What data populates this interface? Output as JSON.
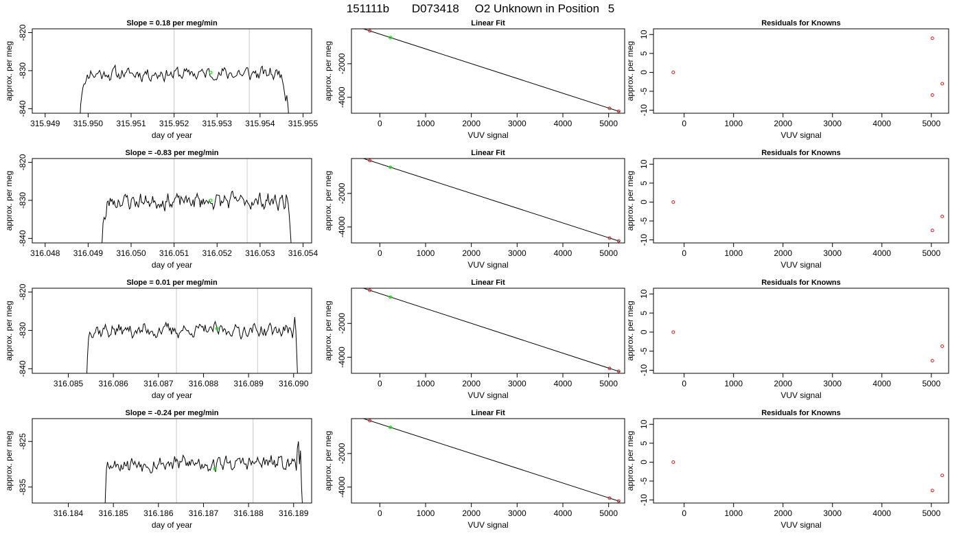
{
  "figure": {
    "run_id": "151111b",
    "sample_id": "D073418",
    "description": "O2 Unknown in Position",
    "position": "5"
  },
  "colors": {
    "trace": "#000000",
    "marker_line": "#c8c8c8",
    "unknown_point": "#22dd22",
    "known_point": "#cc2222",
    "frame": "#000000"
  },
  "chart_data": [
    {
      "type": "line",
      "row": 0,
      "col": 0,
      "title": "Slope =  0.18  per meg/min",
      "xlabel": "day of year",
      "ylabel": "approx. per meg",
      "xlim": [
        315.9487,
        315.9552
      ],
      "ylim": [
        -841.2,
        -819
      ],
      "xticks": [
        "315.949",
        "315.950",
        "315.951",
        "315.952",
        "315.953",
        "315.954",
        "315.955"
      ],
      "xtick_values": [
        315.949,
        315.95,
        315.951,
        315.952,
        315.953,
        315.954,
        315.955
      ],
      "yticks": [
        "-820",
        "-830",
        "-840"
      ],
      "ytick_values": [
        -820,
        -830,
        -840
      ],
      "vlines": [
        315.952,
        315.95375
      ],
      "trace": {
        "start": 315.9498,
        "end": 315.9547,
        "level": -830.8,
        "amp": 1.5,
        "seed": 11,
        "head": [
          -845,
          -839,
          -836.5,
          -834.5,
          -833.5,
          -833.5,
          -832.5
        ],
        "tail": [
          -831,
          -832.5,
          -834,
          -836,
          -838,
          -836.5,
          -839,
          -843,
          -846
        ]
      },
      "unknown_point": {
        "x": 315.95285,
        "y": -830.5
      }
    },
    {
      "type": "scatter",
      "row": 0,
      "col": 1,
      "title": "Linear Fit",
      "xlabel": "VUV signal",
      "ylabel": "approx. per meg",
      "xlim": [
        -620,
        5350
      ],
      "ylim": [
        -4950,
        80
      ],
      "xticks": [
        "0",
        "1000",
        "2000",
        "3000",
        "4000",
        "5000"
      ],
      "xtick_values": [
        0,
        1000,
        2000,
        3000,
        4000,
        5000
      ],
      "yticks": [
        "-2000",
        "-4000"
      ],
      "ytick_values": [
        -2000,
        -4000
      ],
      "fit_line": {
        "x": [
          -520,
          5250
        ],
        "y": [
          222,
          -4860
        ]
      },
      "known_points": [
        {
          "x": -220,
          "y": -43
        },
        {
          "x": 5020,
          "y": -4660
        },
        {
          "x": 5220,
          "y": -4830
        }
      ],
      "unknown_point": {
        "x": 230,
        "y": -440
      }
    },
    {
      "type": "scatter",
      "row": 0,
      "col": 2,
      "title": "Residuals for Knowns",
      "xlabel": "VUV signal",
      "ylabel": "approx. per meg",
      "xlim": [
        -620,
        5350
      ],
      "ylim": [
        -10.8,
        11.5
      ],
      "xticks": [
        "0",
        "1000",
        "2000",
        "3000",
        "4000",
        "5000"
      ],
      "xtick_values": [
        0,
        1000,
        2000,
        3000,
        4000,
        5000
      ],
      "yticks": [
        "10",
        "5",
        "0",
        "-5",
        "-10"
      ],
      "ytick_values": [
        10,
        5,
        0,
        -5,
        -10
      ],
      "known_points": [
        {
          "x": -220,
          "y": 0
        },
        {
          "x": 5020,
          "y": 9
        },
        {
          "x": 5020,
          "y": -6
        },
        {
          "x": 5220,
          "y": -3
        }
      ]
    },
    {
      "type": "line",
      "row": 1,
      "col": 0,
      "title": "Slope =  -0.83  per meg/min",
      "xlabel": "day of year",
      "ylabel": "approx. per meg",
      "xlim": [
        316.0477,
        316.0542
      ],
      "ylim": [
        -841.2,
        -819
      ],
      "xticks": [
        "316.048",
        "316.049",
        "316.050",
        "316.051",
        "316.052",
        "316.053",
        "316.054"
      ],
      "xtick_values": [
        316.048,
        316.049,
        316.05,
        316.051,
        316.052,
        316.053,
        316.054
      ],
      "yticks": [
        "-820",
        "-830",
        "-840"
      ],
      "ytick_values": [
        -820,
        -830,
        -840
      ],
      "vlines": [
        316.051,
        316.0527
      ],
      "trace": {
        "start": 316.0493,
        "end": 316.05375,
        "level": -830.2,
        "amp": 1.8,
        "seed": 23,
        "head": [
          -848,
          -841,
          -836,
          -834.5,
          -835,
          -834
        ],
        "tail": [
          -828.5,
          -829.5,
          -831,
          -834,
          -838,
          -842,
          -847
        ]
      },
      "unknown_point": {
        "x": 316.05185,
        "y": -830
      }
    },
    {
      "type": "scatter",
      "row": 1,
      "col": 1,
      "title": "Linear Fit",
      "xlabel": "VUV signal",
      "ylabel": "approx. per meg",
      "xlim": [
        -620,
        5350
      ],
      "ylim": [
        -4950,
        80
      ],
      "xticks": [
        "0",
        "1000",
        "2000",
        "3000",
        "4000",
        "5000"
      ],
      "xtick_values": [
        0,
        1000,
        2000,
        3000,
        4000,
        5000
      ],
      "yticks": [
        "-2000",
        "-4000"
      ],
      "ytick_values": [
        -2000,
        -4000
      ],
      "fit_line": {
        "x": [
          -520,
          5250
        ],
        "y": [
          222,
          -4860
        ]
      },
      "known_points": [
        {
          "x": -220,
          "y": -43
        },
        {
          "x": 5020,
          "y": -4660
        },
        {
          "x": 5220,
          "y": -4830
        }
      ],
      "unknown_point": {
        "x": 230,
        "y": -440
      }
    },
    {
      "type": "scatter",
      "row": 1,
      "col": 2,
      "title": "Residuals for Knowns",
      "xlabel": "VUV signal",
      "ylabel": "approx. per meg",
      "xlim": [
        -620,
        5350
      ],
      "ylim": [
        -10.8,
        11.5
      ],
      "xticks": [
        "0",
        "1000",
        "2000",
        "3000",
        "4000",
        "5000"
      ],
      "xtick_values": [
        0,
        1000,
        2000,
        3000,
        4000,
        5000
      ],
      "yticks": [
        "10",
        "5",
        "0",
        "-5",
        "-10"
      ],
      "ytick_values": [
        10,
        5,
        0,
        -5,
        -10
      ],
      "known_points": [
        {
          "x": -220,
          "y": 0
        },
        {
          "x": 5020,
          "y": -7.5
        },
        {
          "x": 5220,
          "y": -3.8
        }
      ]
    },
    {
      "type": "line",
      "row": 2,
      "col": 0,
      "title": "Slope =  0.01  per meg/min",
      "xlabel": "day of year",
      "ylabel": "approx. per meg",
      "xlim": [
        316.0842,
        316.0904
      ],
      "ylim": [
        -841.2,
        -819
      ],
      "xticks": [
        "316.085",
        "316.086",
        "316.087",
        "316.088",
        "316.089",
        "316.090"
      ],
      "xtick_values": [
        316.085,
        316.086,
        316.087,
        316.088,
        316.089,
        316.09
      ],
      "yticks": [
        "-820",
        "-830",
        "-840"
      ],
      "ytick_values": [
        -820,
        -830,
        -840
      ],
      "vlines": [
        316.0874,
        316.0892
      ],
      "trace": {
        "start": 316.0854,
        "end": 316.0901,
        "level": -830.0,
        "amp": 1.6,
        "seed": 37,
        "head": [
          -845,
          -837,
          -832,
          -830.5,
          -831
        ],
        "tail": [
          -832,
          -829.5,
          -826.5,
          -830,
          -838,
          -846
        ]
      },
      "unknown_point": {
        "x": 316.0883,
        "y": -829.5
      }
    },
    {
      "type": "scatter",
      "row": 2,
      "col": 1,
      "title": "Linear Fit",
      "xlabel": "VUV signal",
      "ylabel": "approx. per meg",
      "xlim": [
        -620,
        5350
      ],
      "ylim": [
        -4950,
        80
      ],
      "xticks": [
        "0",
        "1000",
        "2000",
        "3000",
        "4000",
        "5000"
      ],
      "xtick_values": [
        0,
        1000,
        2000,
        3000,
        4000,
        5000
      ],
      "yticks": [
        "-2000",
        "-4000"
      ],
      "ytick_values": [
        -2000,
        -4000
      ],
      "fit_line": {
        "x": [
          -520,
          5250
        ],
        "y": [
          222,
          -4860
        ]
      },
      "known_points": [
        {
          "x": -220,
          "y": -43
        },
        {
          "x": 5020,
          "y": -4660
        },
        {
          "x": 5220,
          "y": -4830
        }
      ],
      "unknown_point": {
        "x": 230,
        "y": -440
      }
    },
    {
      "type": "scatter",
      "row": 2,
      "col": 2,
      "title": "Residuals for Knowns",
      "xlabel": "VUV signal",
      "ylabel": "approx. per meg",
      "xlim": [
        -620,
        5350
      ],
      "ylim": [
        -10.8,
        11.5
      ],
      "xticks": [
        "0",
        "1000",
        "2000",
        "3000",
        "4000",
        "5000"
      ],
      "xtick_values": [
        0,
        1000,
        2000,
        3000,
        4000,
        5000
      ],
      "yticks": [
        "10",
        "5",
        "0",
        "-5",
        "-10"
      ],
      "ytick_values": [
        10,
        5,
        0,
        -5,
        -10
      ],
      "known_points": [
        {
          "x": -220,
          "y": 0
        },
        {
          "x": 5020,
          "y": -7.5
        },
        {
          "x": 5220,
          "y": -3.7
        }
      ]
    },
    {
      "type": "line",
      "row": 3,
      "col": 0,
      "title": "Slope =  -0.24  per meg/min",
      "xlabel": "day of year",
      "ylabel": "approx. per meg",
      "xlim": [
        316.1832,
        316.1894
      ],
      "ylim": [
        -838.5,
        -820
      ],
      "xticks": [
        "316.184",
        "316.185",
        "316.186",
        "316.187",
        "316.188",
        "316.189"
      ],
      "xtick_values": [
        316.184,
        316.185,
        316.186,
        316.187,
        316.188,
        316.189
      ],
      "yticks": [
        "-825",
        "-835"
      ],
      "ytick_values": [
        -825,
        -835
      ],
      "vlines": [
        316.1864,
        316.1881
      ],
      "trace": {
        "start": 316.1848,
        "end": 316.1892,
        "level": -829.8,
        "amp": 1.5,
        "seed": 53,
        "head": [
          -845,
          -836.5,
          -831,
          -829.5,
          -830.5,
          -831
        ],
        "tail": [
          -826.5,
          -825,
          -830,
          -827,
          -835,
          -840
        ]
      },
      "unknown_point": {
        "x": 316.18725,
        "y": -831
      }
    },
    {
      "type": "scatter",
      "row": 3,
      "col": 1,
      "title": "Linear Fit",
      "xlabel": "VUV signal",
      "ylabel": "approx. per meg",
      "xlim": [
        -620,
        5350
      ],
      "ylim": [
        -4950,
        80
      ],
      "xticks": [
        "0",
        "1000",
        "2000",
        "3000",
        "4000",
        "5000"
      ],
      "xtick_values": [
        0,
        1000,
        2000,
        3000,
        4000,
        5000
      ],
      "yticks": [
        "-2000",
        "-4000"
      ],
      "ytick_values": [
        -2000,
        -4000
      ],
      "fit_line": {
        "x": [
          -520,
          5250
        ],
        "y": [
          222,
          -4860
        ]
      },
      "known_points": [
        {
          "x": -220,
          "y": -43
        },
        {
          "x": 5020,
          "y": -4660
        },
        {
          "x": 5220,
          "y": -4830
        }
      ],
      "unknown_point": {
        "x": 230,
        "y": -440
      }
    },
    {
      "type": "scatter",
      "row": 3,
      "col": 2,
      "title": "Residuals for Knowns",
      "xlabel": "VUV signal",
      "ylabel": "approx. per meg",
      "xlim": [
        -620,
        5350
      ],
      "ylim": [
        -10.8,
        11.5
      ],
      "xticks": [
        "0",
        "1000",
        "2000",
        "3000",
        "4000",
        "5000"
      ],
      "xtick_values": [
        0,
        1000,
        2000,
        3000,
        4000,
        5000
      ],
      "yticks": [
        "10",
        "5",
        "0",
        "-5",
        "-10"
      ],
      "ytick_values": [
        10,
        5,
        0,
        -5,
        -10
      ],
      "known_points": [
        {
          "x": -220,
          "y": 0
        },
        {
          "x": 5020,
          "y": -7.5
        },
        {
          "x": 5220,
          "y": -3.5
        }
      ]
    }
  ]
}
